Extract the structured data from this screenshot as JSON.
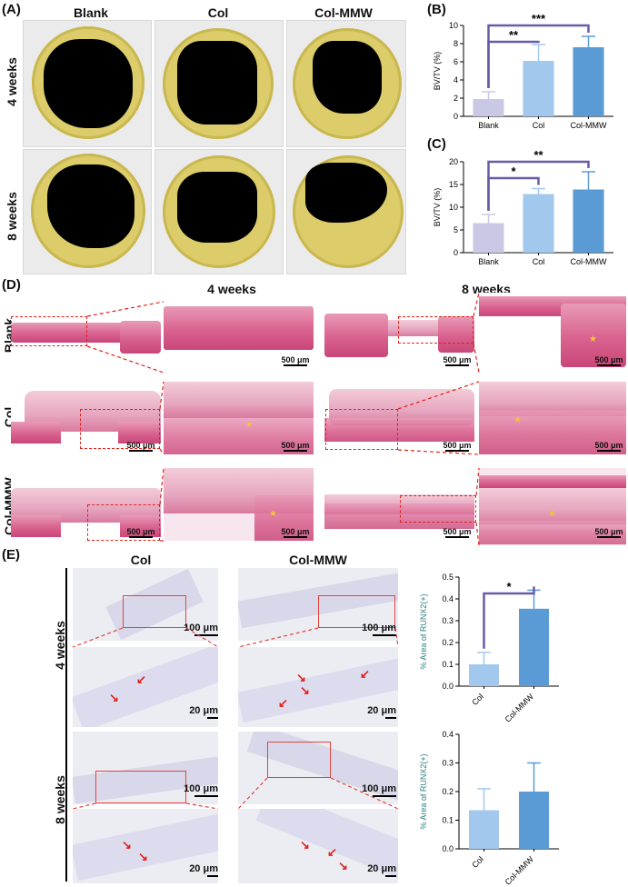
{
  "panels": {
    "a": "(A)",
    "b": "(B)",
    "c": "(C)",
    "d": "(D)",
    "e": "(E)"
  },
  "panel_a": {
    "columns": [
      "Blank",
      "Col",
      "Col-MMW"
    ],
    "rows": [
      "4 weeks",
      "8 weeks"
    ]
  },
  "panel_d": {
    "timepoints": [
      "4 weeks",
      "8 weeks"
    ],
    "rows": [
      "Blank",
      "Col",
      "Col-MMW"
    ],
    "scalebar": "500 μm"
  },
  "panel_e": {
    "columns": [
      "Col",
      "Col-MMW"
    ],
    "rows": [
      "4 weeks",
      "8 weeks"
    ],
    "scale_large": "100 μm",
    "scale_small": "20 μm"
  },
  "colors": {
    "blank": "#c9c9e6",
    "col": "#a3c8ee",
    "colmmw": "#5a9bd5",
    "bracket": "#6b5aa8",
    "ylabel_e": "#2e7d82"
  },
  "chart_data": [
    {
      "id": "B",
      "type": "bar",
      "categories": [
        "Blank",
        "Col",
        "Col-MMW"
      ],
      "values": [
        1.9,
        6.1,
        7.6
      ],
      "errors": [
        0.8,
        1.8,
        1.2
      ],
      "ylabel": "BV/TV (%)",
      "ylim": [
        0,
        10
      ],
      "yticks": [
        0,
        2,
        4,
        6,
        8,
        10
      ],
      "significance": [
        {
          "from": 0,
          "to": 1,
          "label": "**"
        },
        {
          "from": 0,
          "to": 2,
          "label": "***"
        }
      ]
    },
    {
      "id": "C",
      "type": "bar",
      "categories": [
        "Blank",
        "Col",
        "Col-MMW"
      ],
      "values": [
        6.5,
        12.9,
        13.9
      ],
      "errors": [
        1.9,
        1.2,
        3.9
      ],
      "ylabel": "BV/TV (%)",
      "ylim": [
        0,
        20
      ],
      "yticks": [
        0,
        5,
        10,
        15,
        20
      ],
      "significance": [
        {
          "from": 0,
          "to": 1,
          "label": "*"
        },
        {
          "from": 0,
          "to": 2,
          "label": "**"
        }
      ]
    },
    {
      "id": "E1",
      "type": "bar",
      "categories": [
        "Col",
        "Col-MMW"
      ],
      "values": [
        0.1,
        0.355
      ],
      "errors": [
        0.055,
        0.085
      ],
      "ylabel": "% Area of RUNX2(+)",
      "ylim": [
        0,
        0.5
      ],
      "yticks": [
        0.0,
        0.1,
        0.2,
        0.3,
        0.4,
        0.5
      ],
      "significance": [
        {
          "from": 0,
          "to": 1,
          "label": "*"
        }
      ]
    },
    {
      "id": "E2",
      "type": "bar",
      "categories": [
        "Col",
        "Col-MMW"
      ],
      "values": [
        0.135,
        0.2
      ],
      "errors": [
        0.075,
        0.1
      ],
      "ylabel": "% Area of RUNX2(+)",
      "ylim": [
        0,
        0.4
      ],
      "yticks": [
        0.0,
        0.1,
        0.2,
        0.3,
        0.4
      ],
      "significance": []
    }
  ]
}
